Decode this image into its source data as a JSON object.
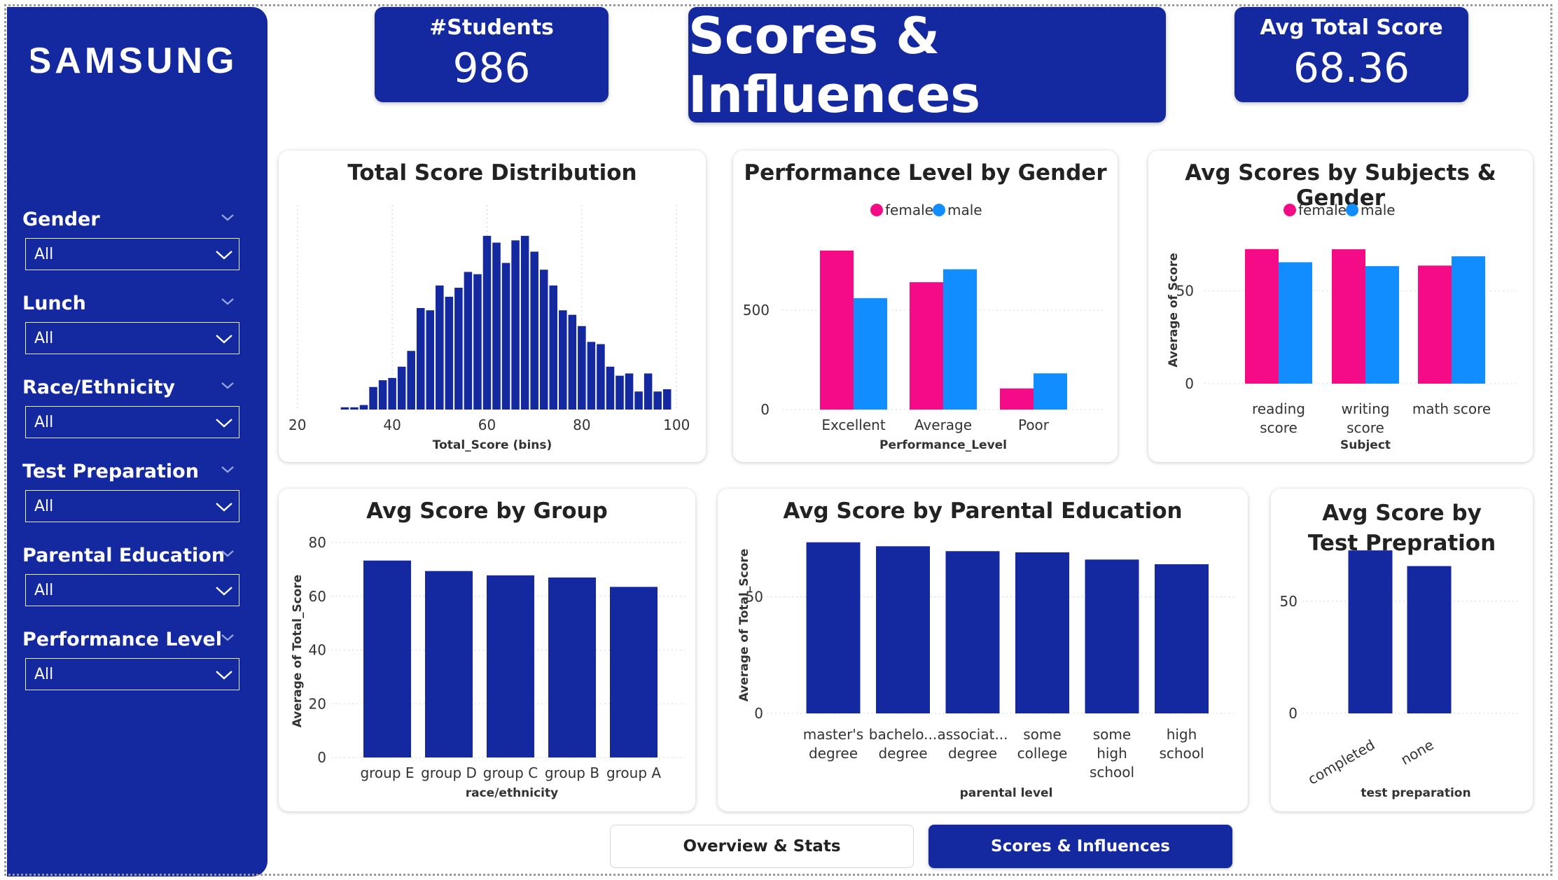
{
  "brand": {
    "logo_text": "SAMSUNG"
  },
  "colors": {
    "navy": "#1428A0",
    "female": "#F50B85",
    "male": "#118DFF",
    "bar": "#1428A0"
  },
  "filters": [
    {
      "label": "Gender",
      "value": "All"
    },
    {
      "label": "Lunch",
      "value": "All"
    },
    {
      "label": "Race/Ethnicity",
      "value": "All"
    },
    {
      "label": "Test Preparation",
      "value": "All"
    },
    {
      "label": "Parental Education",
      "value": "All"
    },
    {
      "label": "Performance Level",
      "value": "All"
    }
  ],
  "kpis": {
    "students": {
      "label": "#Students",
      "value": "986"
    },
    "avg_total": {
      "label": "Avg Total Score",
      "value": "68.36"
    }
  },
  "page_title": "Scores & Influences",
  "tabs": {
    "overview": "Overview & Stats",
    "scores": "Scores & Influences"
  },
  "chart_data": [
    {
      "type": "bar",
      "title": "Total Score Distribution",
      "xlabel": "Total_Score (bins)",
      "ylabel": "",
      "x_ticks": [
        20,
        40,
        60,
        80,
        100
      ],
      "xlim": [
        19,
        101
      ],
      "ylim": [
        0,
        9
      ],
      "bin_width": 2,
      "bins": [
        30,
        32,
        34,
        36,
        38,
        40,
        42,
        44,
        46,
        48,
        50,
        52,
        54,
        56,
        58,
        60,
        62,
        64,
        66,
        68,
        70,
        72,
        74,
        76,
        78,
        80,
        82,
        84,
        86,
        88,
        90,
        92,
        94,
        96,
        98
      ],
      "values": [
        0.1,
        0.1,
        0.2,
        1.0,
        1.3,
        1.4,
        1.9,
        2.6,
        4.5,
        4.4,
        5.5,
        5.0,
        5.4,
        6.1,
        6.0,
        7.7,
        7.4,
        6.5,
        7.5,
        7.7,
        7.0,
        6.2,
        5.5,
        4.4,
        4.2,
        3.7,
        3.0,
        2.9,
        1.9,
        1.5,
        1.6,
        0.8,
        1.6,
        0.8,
        0.9
      ]
    },
    {
      "type": "bar",
      "title": "Performance Level by Gender",
      "categories": [
        "Excellent",
        "Average",
        "Poor"
      ],
      "series": [
        {
          "name": "female",
          "values": [
            799,
            640,
            106
          ]
        },
        {
          "name": "male",
          "values": [
            560,
            705,
            182
          ]
        }
      ],
      "xlabel": "Performance_Level",
      "ylabel": "",
      "y_ticks": [
        0,
        500
      ],
      "ylim": [
        0,
        950
      ],
      "legend": "top-center"
    },
    {
      "type": "bar",
      "title": "Avg Scores by Subjects & Gender",
      "categories": [
        "reading score",
        "writing score",
        "math score"
      ],
      "series": [
        {
          "name": "female",
          "values": [
            72.6,
            72.5,
            63.7
          ]
        },
        {
          "name": "male",
          "values": [
            65.5,
            63.4,
            68.7
          ]
        }
      ],
      "xlabel": "Subject",
      "ylabel": "Average of Score",
      "y_ticks": [
        0,
        50
      ],
      "ylim": [
        0,
        88
      ],
      "legend": "top-center"
    },
    {
      "type": "bar",
      "title": "Avg Score by Group",
      "categories": [
        "group E",
        "group D",
        "group C",
        "group B",
        "group A"
      ],
      "values": [
        73.3,
        69.4,
        67.8,
        67.0,
        63.5
      ],
      "xlabel": "race/ethnicity",
      "ylabel": "Average of Total_Score",
      "y_ticks": [
        0,
        20,
        40,
        60,
        80
      ],
      "ylim": [
        0,
        80
      ]
    },
    {
      "type": "bar",
      "title": "Avg Score by Parental Education",
      "categories": [
        "master's degree",
        "bachelo... degree",
        "associat... degree",
        "some college",
        "some high school",
        "high school"
      ],
      "values": [
        73.4,
        71.7,
        69.6,
        69.1,
        66.0,
        64.0
      ],
      "xlabel": "parental level",
      "ylabel": "Average of Total_Score",
      "y_ticks": [
        0,
        50
      ],
      "ylim": [
        0,
        82
      ]
    },
    {
      "type": "bar",
      "title": "Avg Score by Test Prepration",
      "categories": [
        "completed",
        "none"
      ],
      "values": [
        72.7,
        65.7
      ],
      "xlabel": "test preparation",
      "ylabel": "",
      "y_ticks": [
        0,
        50
      ],
      "ylim": [
        0,
        84
      ]
    }
  ]
}
